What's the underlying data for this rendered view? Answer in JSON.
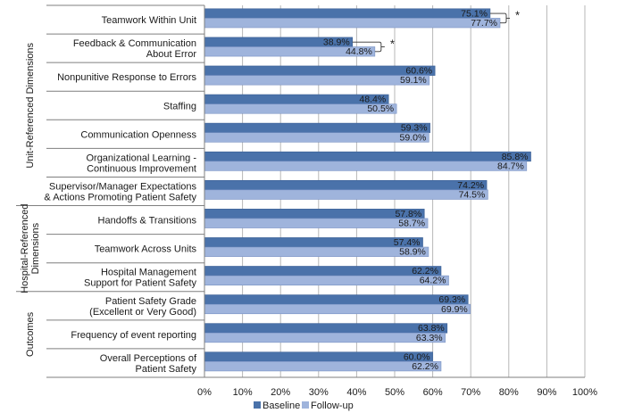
{
  "chart_data": {
    "type": "bar",
    "orientation": "horizontal",
    "categories": [
      [
        "Teamwork Within Unit"
      ],
      [
        "Feedback & Communication",
        "About Error"
      ],
      [
        "Nonpunitive Response to Errors"
      ],
      [
        "Staffing"
      ],
      [
        "Communication Openness"
      ],
      [
        "Organizational Learning -",
        "Continuous Improvement"
      ],
      [
        "Supervisor/Manager Expectations",
        "& Actions Promoting Patient Safety"
      ],
      [
        "Handoffs & Transitions"
      ],
      [
        "Teamwork Across Units"
      ],
      [
        "Hospital Management",
        "Support for Patient Safety"
      ],
      [
        "Patient Safety Grade",
        "(Excellent or Very Good)"
      ],
      [
        "Frequency of event reporting"
      ],
      [
        "Overall Perceptions of",
        "Patient Safety"
      ]
    ],
    "series": [
      {
        "name": "Baseline",
        "color": "#4a72aa",
        "values": [
          75.1,
          38.9,
          60.6,
          48.4,
          59.3,
          85.8,
          74.2,
          57.8,
          57.4,
          62.2,
          69.3,
          63.8,
          60.0
        ],
        "labels": [
          "75.1%",
          "38.9%",
          "60.6%",
          "48.4%",
          "59.3%",
          "85.8%",
          "74.2%",
          "57.8%",
          "57.4%",
          "62.2%",
          "69.3%",
          "63.8%",
          "60.0%"
        ]
      },
      {
        "name": "Follow-up",
        "color": "#9fb4dc",
        "values": [
          77.7,
          44.8,
          59.1,
          50.5,
          59.0,
          84.7,
          74.5,
          58.7,
          58.9,
          64.2,
          69.9,
          63.3,
          62.2
        ],
        "labels": [
          "77.7%",
          "44.8%",
          "59.1%",
          "50.5%",
          "59.0%",
          "84.7%",
          "74.5%",
          "58.7%",
          "58.9%",
          "64.2%",
          "69.9%",
          "63.3%",
          "62.2%"
        ]
      }
    ],
    "xlim": [
      0,
      100
    ],
    "xticks": [
      "0%",
      "10%",
      "20%",
      "30%",
      "40%",
      "50%",
      "60%",
      "70%",
      "80%",
      "90%",
      "100%"
    ],
    "grid": true,
    "legend_position": "bottom-center",
    "groups": [
      {
        "label": [
          "Unit-Referenced Dimensions"
        ],
        "start": 0,
        "end": 6
      },
      {
        "label": [
          "Hospital-Referenced",
          "Dimensions"
        ],
        "start": 7,
        "end": 9
      },
      {
        "label": [
          "Outcomes"
        ],
        "start": 10,
        "end": 12
      }
    ],
    "significance": [
      {
        "category_index": 0,
        "marker": "*"
      },
      {
        "category_index": 1,
        "marker": "*"
      }
    ],
    "colors": {
      "grid": "#b7b7b7",
      "axis": "#7f7f7f"
    }
  }
}
